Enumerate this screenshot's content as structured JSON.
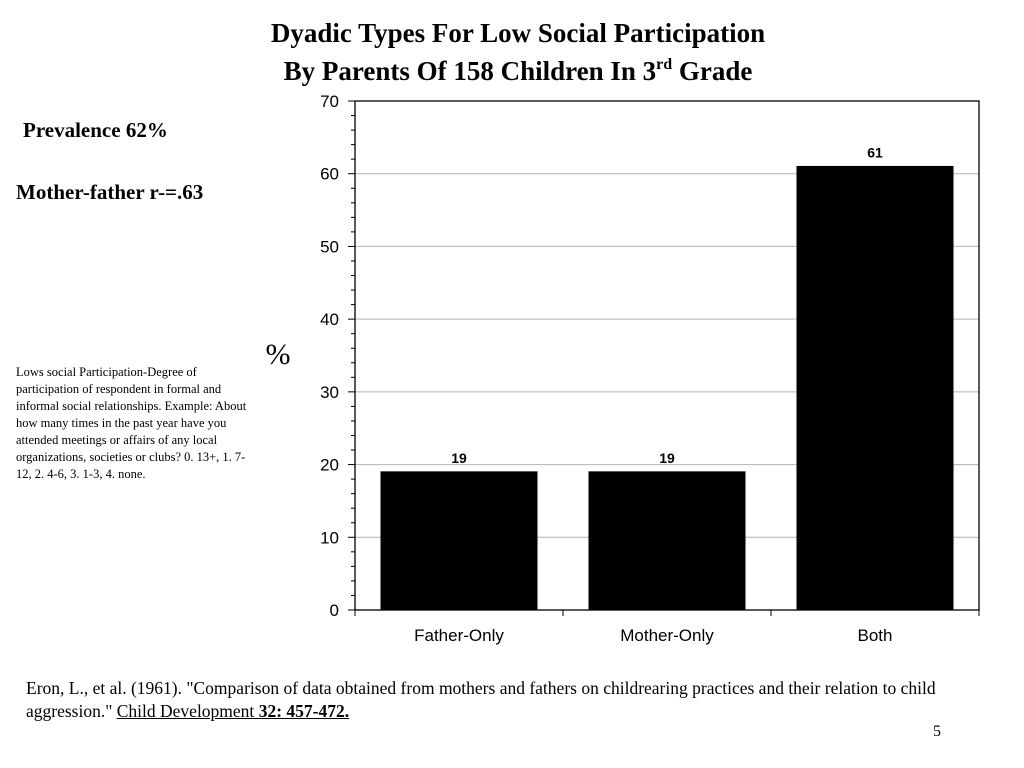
{
  "title": {
    "line1": "Dyadic Types For Low Social Participation",
    "line2_prefix": "By Parents  Of 158 Children In 3",
    "line2_sup": "rd",
    "line2_suffix": " Grade"
  },
  "prevalence": "Prevalence 62%",
  "correlation": "Mother-father r-=.63",
  "definition": "Lows social Participation-Degree of participation of respondent in formal and informal social relationships. Example: About how many times in the past year have you attended meetings or affairs of any local organizations, societies or clubs? 0. 13+, 1. 7-12, 2. 4-6, 3. 1-3, 4. none.",
  "citation": {
    "text": "Eron, L., et al. (1961). \"Comparison of data obtained from mothers and fathers on childrearing practices and their relation to child aggression.\" ",
    "journal": "Child Development",
    "volume": " 32: 457-472."
  },
  "page_number": "5",
  "chart_data": {
    "type": "bar",
    "categories": [
      "Father-Only",
      "Mother-Only",
      "Both"
    ],
    "values": [
      19,
      19,
      61
    ],
    "data_labels": [
      "19",
      "19",
      "61"
    ],
    "ylabel": "%",
    "xlabel": "",
    "ylim": [
      0,
      70
    ],
    "yticks": [
      0,
      10,
      20,
      30,
      40,
      50,
      60,
      70
    ],
    "grid": true,
    "bar_color": "#000000",
    "grid_color": "#b3b3b3"
  }
}
